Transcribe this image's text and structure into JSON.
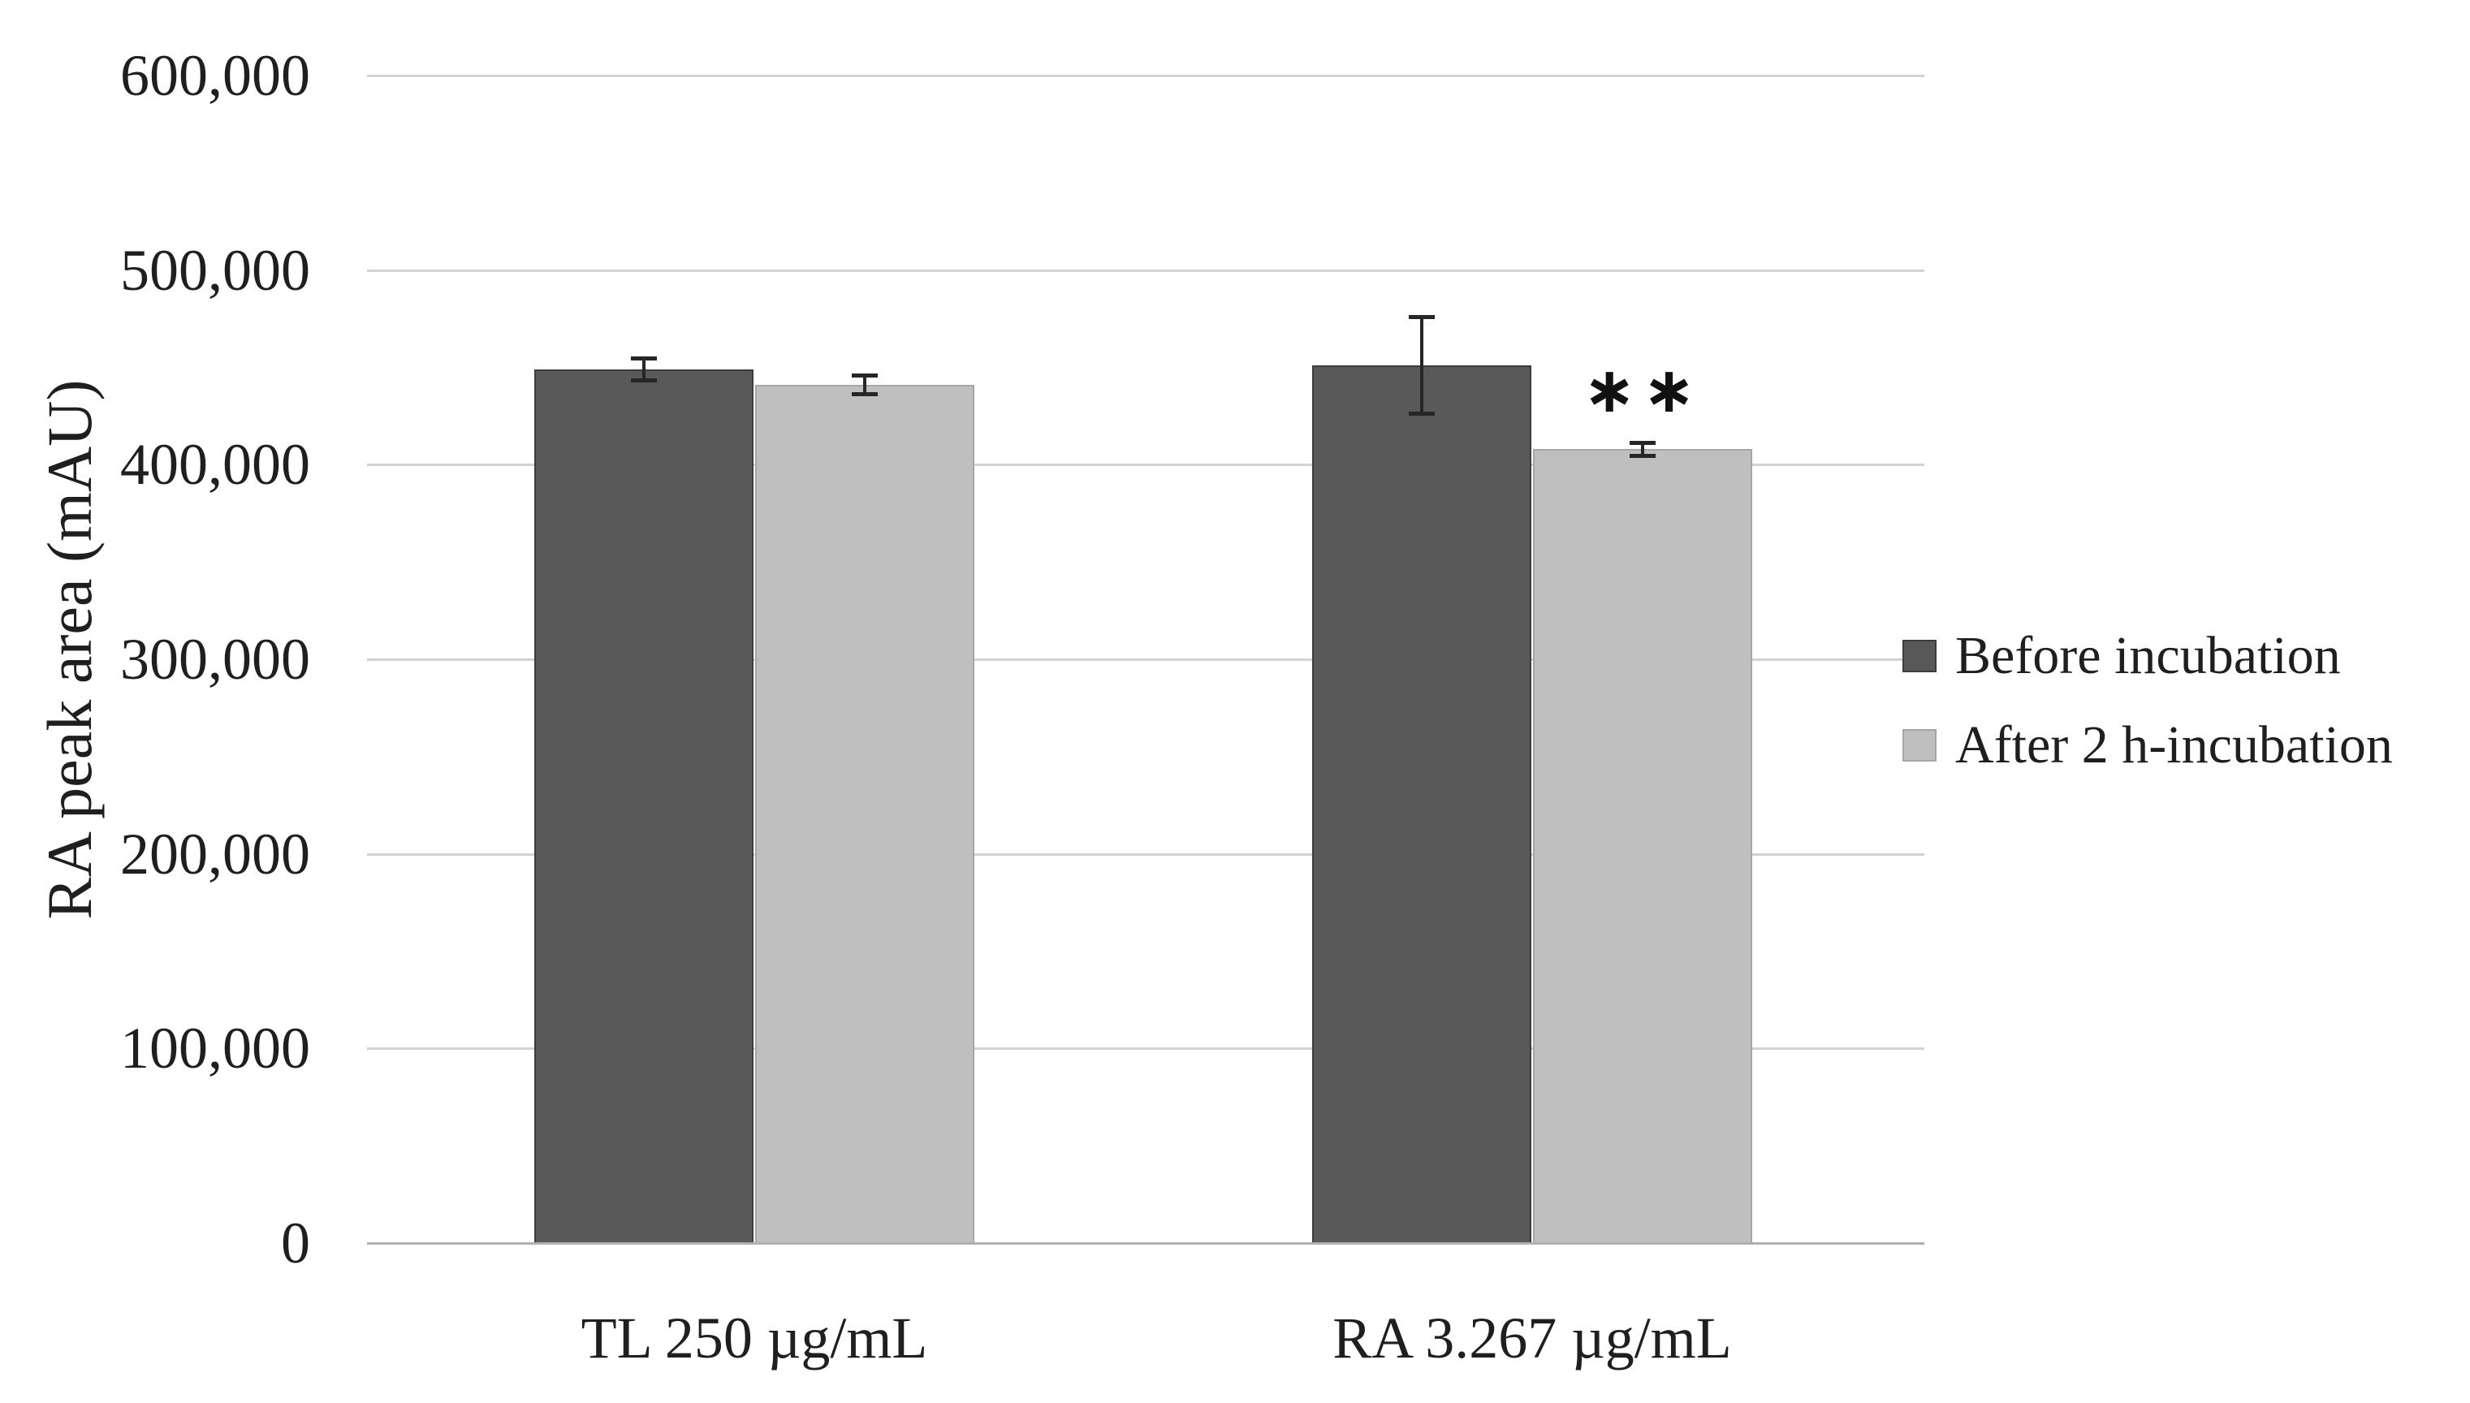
{
  "figure": {
    "background": "#ffffff",
    "text_color": "#1f1f1f"
  },
  "chart_data": {
    "type": "bar",
    "title": "",
    "xlabel": "",
    "ylabel": "RA peak area (mAU)",
    "categories": [
      "TL 250 µg/mL",
      "RA 3.267 µg/mL"
    ],
    "series": [
      {
        "name": "Before incubation",
        "color": "#595959",
        "border_color": "#3d3d3d",
        "values": [
          449000,
          451000
        ],
        "error_bars": [
          6000,
          25000
        ]
      },
      {
        "name": "After 2 h-incubation",
        "color": "#bfbfbf",
        "border_color": "#a6a6a6",
        "values": [
          441000,
          408000
        ],
        "error_bars": [
          5000,
          3500
        ]
      }
    ],
    "ylim": [
      0,
      600000
    ],
    "ytick_interval": 100000,
    "yticks": [
      {
        "value": 0,
        "label": "0"
      },
      {
        "value": 100000,
        "label": "100,000"
      },
      {
        "value": 200000,
        "label": "200,000"
      },
      {
        "value": 300000,
        "label": "300,000"
      },
      {
        "value": 400000,
        "label": "400,000"
      },
      {
        "value": 500000,
        "label": "500,000"
      },
      {
        "value": 600000,
        "label": "600,000"
      }
    ],
    "grid": true,
    "gridline_color": "#d2d2d2",
    "axis_line_color": "#b0b0b0",
    "error_bar_color": "#262626",
    "legend_position": "right",
    "annotations": [
      {
        "text": "∗∗",
        "category_index": 1,
        "series_index": 1
      }
    ]
  }
}
